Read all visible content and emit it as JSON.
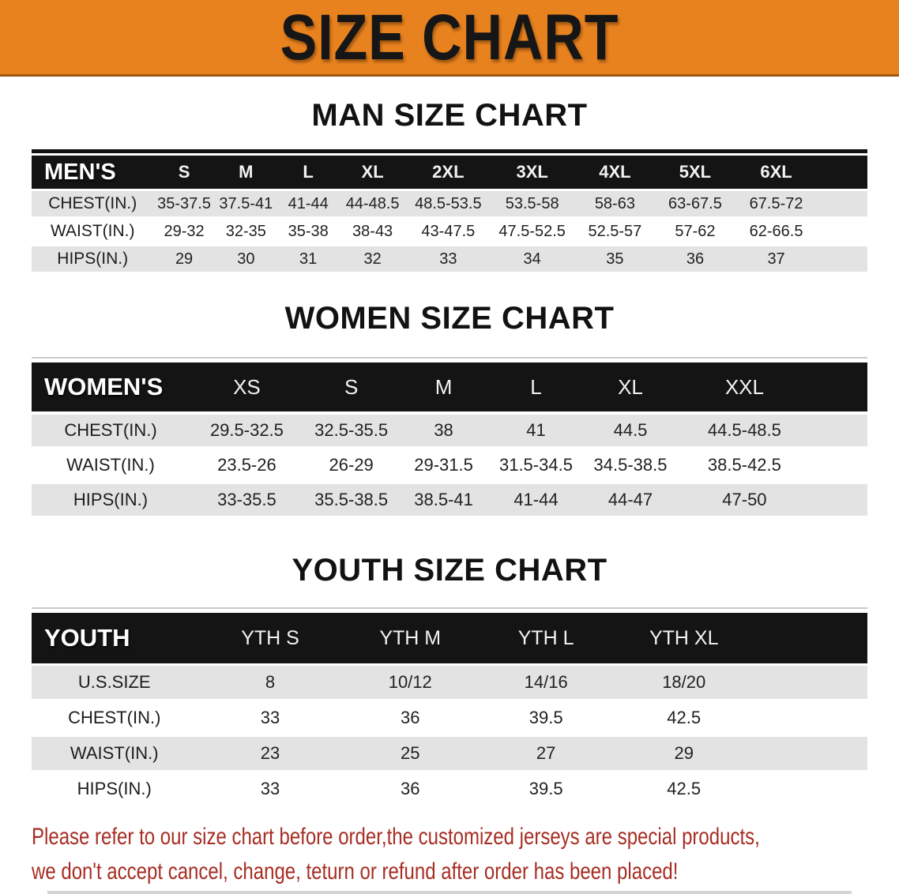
{
  "banner": {
    "title": "SIZE CHART",
    "bg_color": "#e8821f",
    "text_color": "#161616"
  },
  "colors": {
    "table_header_bar": "#141414",
    "row_stripe": "#e3e3e3",
    "footer_text": "#a72d23"
  },
  "sections": [
    {
      "heading": "MAN SIZE CHART",
      "table": {
        "label": "MEN'S",
        "columns": [
          "S",
          "M",
          "L",
          "XL",
          "2XL",
          "3XL",
          "4XL",
          "5XL",
          "6XL"
        ],
        "rows": [
          {
            "label": "CHEST(IN.)",
            "values": [
              "35-37.5",
              "37.5-41",
              "41-44",
              "44-48.5",
              "48.5-53.5",
              "53.5-58",
              "58-63",
              "63-67.5",
              "67.5-72"
            ]
          },
          {
            "label": "WAIST(IN.)",
            "values": [
              "29-32",
              "32-35",
              "35-38",
              "38-43",
              "43-47.5",
              "47.5-52.5",
              "52.5-57",
              "57-62",
              "62-66.5"
            ]
          },
          {
            "label": "HIPS(IN.)",
            "values": [
              "29",
              "30",
              "31",
              "32",
              "33",
              "34",
              "35",
              "36",
              "37"
            ]
          }
        ]
      }
    },
    {
      "heading": "WOMEN SIZE CHART",
      "table": {
        "label": "WOMEN'S",
        "columns": [
          "XS",
          "S",
          "M",
          "L",
          "XL",
          "XXL"
        ],
        "rows": [
          {
            "label": "CHEST(IN.)",
            "values": [
              "29.5-32.5",
              "32.5-35.5",
              "38",
              "41",
              "44.5",
              "44.5-48.5"
            ]
          },
          {
            "label": "WAIST(IN.)",
            "values": [
              "23.5-26",
              "26-29",
              "29-31.5",
              "31.5-34.5",
              "34.5-38.5",
              "38.5-42.5"
            ]
          },
          {
            "label": "HIPS(IN.)",
            "values": [
              "33-35.5",
              "35.5-38.5",
              "38.5-41",
              "41-44",
              "44-47",
              "47-50"
            ]
          }
        ]
      }
    },
    {
      "heading": "YOUTH SIZE CHART",
      "table": {
        "label": "YOUTH",
        "columns": [
          "YTH S",
          "YTH M",
          "YTH L",
          "YTH XL"
        ],
        "rows": [
          {
            "label": "U.S.SIZE",
            "values": [
              "8",
              "10/12",
              "14/16",
              "18/20"
            ]
          },
          {
            "label": "CHEST(IN.)",
            "values": [
              "33",
              "36",
              "39.5",
              "42.5"
            ]
          },
          {
            "label": "WAIST(IN.)",
            "values": [
              "23",
              "25",
              "27",
              "29"
            ]
          },
          {
            "label": "HIPS(IN.)",
            "values": [
              "33",
              "36",
              "39.5",
              "42.5"
            ]
          }
        ]
      }
    }
  ],
  "footer": {
    "line1": "Please refer to our size chart before order,the customized jerseys are special products,",
    "line2": "we don't accept cancel, change, teturn or refund after order has been placed!"
  }
}
